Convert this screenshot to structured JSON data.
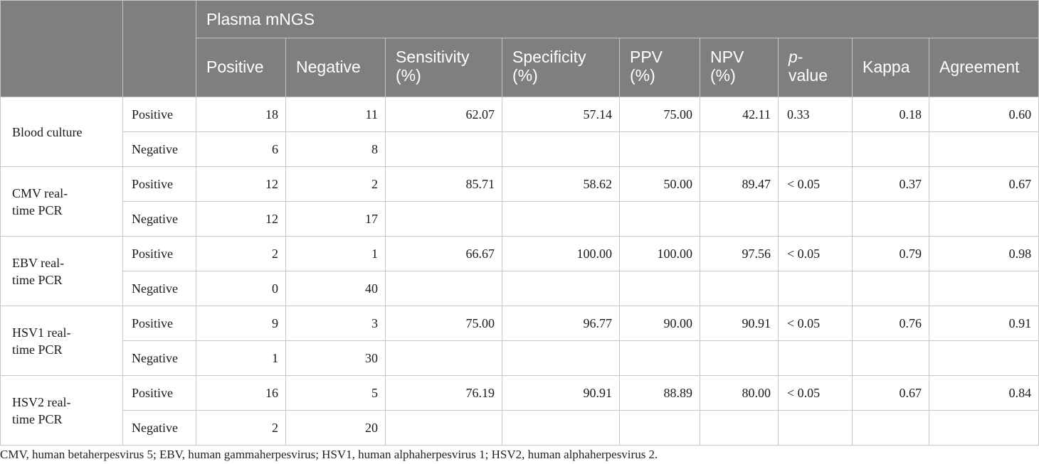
{
  "header": {
    "group_label": "Plasma mNGS",
    "col_positive": "Positive",
    "col_negative": "Negative",
    "col_sensitivity": [
      "Sensitivity",
      "(%)"
    ],
    "col_specificity": [
      "Specificity",
      "(%)"
    ],
    "col_ppv": [
      "PPV",
      "(%)"
    ],
    "col_npv": [
      "NPV",
      "(%)"
    ],
    "col_pvalue": [
      "p",
      "-",
      "value"
    ],
    "col_kappa": "Kappa",
    "col_agreement": "Agreement"
  },
  "groups": [
    {
      "label": [
        "Blood culture"
      ],
      "rows": [
        {
          "sub": "Positive",
          "pos": "18",
          "neg": "11",
          "sens": "62.07",
          "spec": "57.14",
          "ppv": "75.00",
          "npv": "42.11",
          "p": "0.33",
          "kappa": "0.18",
          "agree": "0.60"
        },
        {
          "sub": "Negative",
          "pos": "6",
          "neg": "8"
        }
      ]
    },
    {
      "label": [
        "CMV real-",
        "time PCR"
      ],
      "rows": [
        {
          "sub": "Positive",
          "pos": "12",
          "neg": "2",
          "sens": "85.71",
          "spec": "58.62",
          "ppv": "50.00",
          "npv": "89.47",
          "p": "< 0.05",
          "kappa": "0.37",
          "agree": "0.67"
        },
        {
          "sub": "Negative",
          "pos": "12",
          "neg": "17"
        }
      ]
    },
    {
      "label": [
        "EBV real-",
        "time PCR"
      ],
      "rows": [
        {
          "sub": "Positive",
          "pos": "2",
          "neg": "1",
          "sens": "66.67",
          "spec": "100.00",
          "ppv": "100.00",
          "npv": "97.56",
          "p": "< 0.05",
          "kappa": "0.79",
          "agree": "0.98"
        },
        {
          "sub": "Negative",
          "pos": "0",
          "neg": "40"
        }
      ]
    },
    {
      "label": [
        "HSV1 real-",
        "time PCR"
      ],
      "rows": [
        {
          "sub": "Positive",
          "pos": "9",
          "neg": "3",
          "sens": "75.00",
          "spec": "96.77",
          "ppv": "90.00",
          "npv": "90.91",
          "p": "< 0.05",
          "kappa": "0.76",
          "agree": "0.91"
        },
        {
          "sub": "Negative",
          "pos": "1",
          "neg": "30"
        }
      ]
    },
    {
      "label": [
        "HSV2 real-",
        "time PCR"
      ],
      "rows": [
        {
          "sub": "Positive",
          "pos": "16",
          "neg": "5",
          "sens": "76.19",
          "spec": "90.91",
          "ppv": "88.89",
          "npv": "80.00",
          "p": "< 0.05",
          "kappa": "0.67",
          "agree": "0.84"
        },
        {
          "sub": "Negative",
          "pos": "2",
          "neg": "20"
        }
      ]
    }
  ],
  "footnote": "CMV, human betaherpesvirus 5; EBV, human gammaherpesvirus; HSV1, human alphaherpesvirus 1; HSV2, human alphaherpesvirus 2.",
  "colors": {
    "header_bg": "#7f7f7f",
    "header_text": "#ffffff",
    "grid": "#c6c6c6"
  }
}
